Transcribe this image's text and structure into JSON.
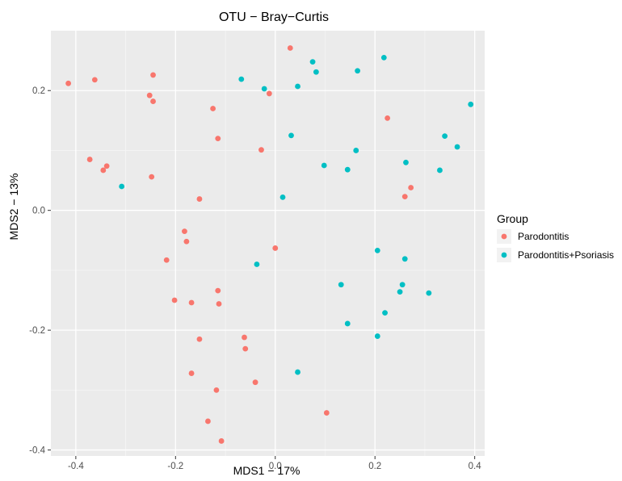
{
  "chart_data": {
    "type": "scatter",
    "title": "OTU − Bray−Curtis",
    "xlabel": "MDS1 − 17%",
    "ylabel": "MDS2 − 13%",
    "xlim": [
      -0.45,
      0.42
    ],
    "ylim": [
      -0.41,
      0.3
    ],
    "xticks": [
      -0.4,
      -0.2,
      0.0,
      0.2,
      0.4
    ],
    "xtick_labels": [
      "-0.4",
      "-0.2",
      "0.0",
      "0.2",
      "0.4"
    ],
    "yticks": [
      -0.4,
      -0.2,
      0.0,
      0.2
    ],
    "ytick_labels": [
      "-0.4",
      "-0.2",
      "0.0",
      "0.2"
    ],
    "grid": true,
    "legend": {
      "title": "Group",
      "placement": "right"
    },
    "series": [
      {
        "name": "Parodontitis",
        "color": "#F8766D",
        "points": [
          [
            -0.415,
            0.212
          ],
          [
            -0.362,
            0.218
          ],
          [
            -0.245,
            0.226
          ],
          [
            -0.252,
            0.192
          ],
          [
            -0.245,
            0.182
          ],
          [
            -0.372,
            0.085
          ],
          [
            -0.338,
            0.074
          ],
          [
            -0.345,
            0.067
          ],
          [
            -0.248,
            0.056
          ],
          [
            -0.152,
            0.019
          ],
          [
            -0.125,
            0.17
          ],
          [
            -0.115,
            0.12
          ],
          [
            -0.028,
            0.101
          ],
          [
            -0.012,
            0.195
          ],
          [
            0.03,
            0.271
          ],
          [
            0.225,
            0.154
          ],
          [
            0.272,
            0.038
          ],
          [
            0.26,
            0.023
          ],
          [
            -0.182,
            -0.035
          ],
          [
            -0.178,
            -0.052
          ],
          [
            -0.218,
            -0.083
          ],
          [
            -0.202,
            -0.15
          ],
          [
            -0.168,
            -0.154
          ],
          [
            -0.115,
            -0.134
          ],
          [
            -0.113,
            -0.156
          ],
          [
            -0.152,
            -0.215
          ],
          [
            -0.168,
            -0.272
          ],
          [
            -0.118,
            -0.3
          ],
          [
            -0.135,
            -0.352
          ],
          [
            -0.108,
            -0.385
          ],
          [
            -0.062,
            -0.212
          ],
          [
            -0.06,
            -0.231
          ],
          [
            -0.04,
            -0.287
          ],
          [
            0.0,
            -0.063
          ],
          [
            0.103,
            -0.338
          ]
        ]
      },
      {
        "name": "Parodontitis+Psoriasis",
        "color": "#00BFC4",
        "points": [
          [
            -0.068,
            0.219
          ],
          [
            -0.022,
            0.203
          ],
          [
            0.045,
            0.207
          ],
          [
            0.075,
            0.248
          ],
          [
            0.082,
            0.231
          ],
          [
            0.165,
            0.233
          ],
          [
            0.218,
            0.255
          ],
          [
            0.392,
            0.177
          ],
          [
            0.032,
            0.125
          ],
          [
            0.34,
            0.124
          ],
          [
            0.365,
            0.106
          ],
          [
            0.162,
            0.1
          ],
          [
            0.098,
            0.075
          ],
          [
            0.145,
            0.068
          ],
          [
            0.262,
            0.08
          ],
          [
            0.33,
            0.067
          ],
          [
            0.015,
            0.022
          ],
          [
            -0.308,
            0.04
          ],
          [
            0.205,
            -0.067
          ],
          [
            0.26,
            -0.081
          ],
          [
            -0.037,
            -0.09
          ],
          [
            0.132,
            -0.124
          ],
          [
            0.255,
            -0.124
          ],
          [
            0.25,
            -0.136
          ],
          [
            0.308,
            -0.138
          ],
          [
            0.22,
            -0.171
          ],
          [
            0.145,
            -0.189
          ],
          [
            0.205,
            -0.21
          ],
          [
            0.045,
            -0.27
          ]
        ]
      }
    ]
  }
}
